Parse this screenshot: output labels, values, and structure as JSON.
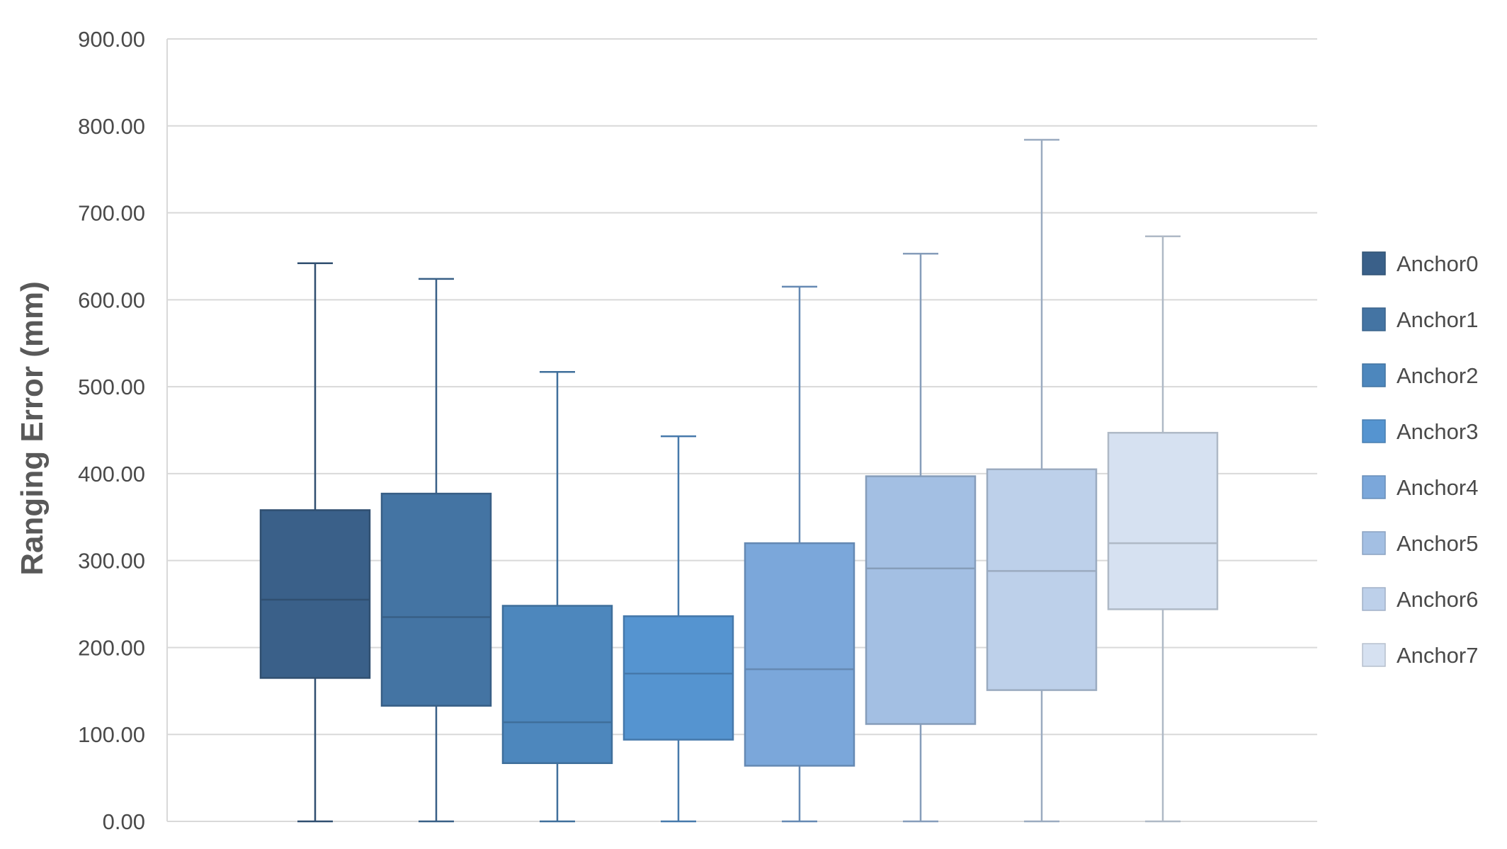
{
  "chart_data": {
    "type": "boxplot",
    "title": "",
    "xlabel": "",
    "ylabel": "Ranging Error (mm)",
    "ylim": [
      0,
      900
    ],
    "yticks": [
      "0.00",
      "100.00",
      "200.00",
      "300.00",
      "400.00",
      "500.00",
      "600.00",
      "700.00",
      "800.00",
      "900.00"
    ],
    "grid": true,
    "legend_position": "right",
    "series": [
      {
        "name": "Anchor0",
        "color": "#3a6089",
        "min": 0,
        "q1": 165,
        "median": 255,
        "q3": 358,
        "max": 642
      },
      {
        "name": "Anchor1",
        "color": "#4474a3",
        "min": 0,
        "q1": 133,
        "median": 235,
        "q3": 377,
        "max": 624
      },
      {
        "name": "Anchor2",
        "color": "#4d87bd",
        "min": 0,
        "q1": 67,
        "median": 114,
        "q3": 248,
        "max": 517
      },
      {
        "name": "Anchor3",
        "color": "#5594d0",
        "min": 0,
        "q1": 94,
        "median": 170,
        "q3": 236,
        "max": 443
      },
      {
        "name": "Anchor4",
        "color": "#7ba7da",
        "min": 0,
        "q1": 64,
        "median": 175,
        "q3": 320,
        "max": 615
      },
      {
        "name": "Anchor5",
        "color": "#a3bfe3",
        "min": 0,
        "q1": 112,
        "median": 291,
        "q3": 397,
        "max": 653
      },
      {
        "name": "Anchor6",
        "color": "#bdd0ea",
        "min": 0,
        "q1": 151,
        "median": 288,
        "q3": 405,
        "max": 784
      },
      {
        "name": "Anchor7",
        "color": "#d6e1f1",
        "min": 0,
        "q1": 244,
        "median": 320,
        "q3": 447,
        "max": 673
      }
    ]
  }
}
